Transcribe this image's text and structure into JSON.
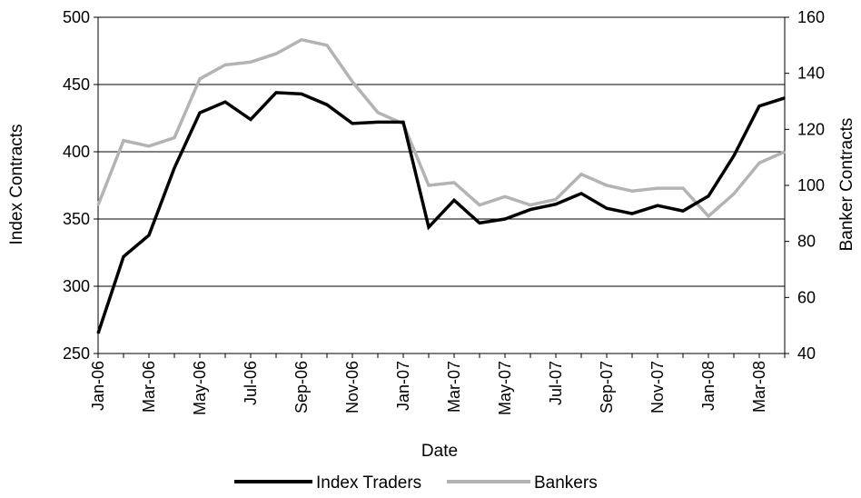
{
  "chart_data": {
    "type": "line",
    "xlabel": "Date",
    "ylabel_left": "Index Contracts",
    "ylabel_right": "Banker Contracts",
    "ylim_left": [
      250,
      500
    ],
    "ylim_right": [
      40,
      160
    ],
    "yticks_left": [
      "250",
      "300",
      "350",
      "400",
      "450",
      "500"
    ],
    "yticks_right": [
      "40",
      "60",
      "80",
      "100",
      "120",
      "140",
      "160"
    ],
    "x": [
      "Jan-06",
      "Feb-06",
      "Mar-06",
      "Apr-06",
      "May-06",
      "Jun-06",
      "Jul-06",
      "Aug-06",
      "Sep-06",
      "Oct-06",
      "Nov-06",
      "Dec-06",
      "Jan-07",
      "Feb-07",
      "Mar-07",
      "Apr-07",
      "May-07",
      "Jun-07",
      "Jul-07",
      "Aug-07",
      "Sep-07",
      "Oct-07",
      "Nov-07",
      "Dec-07",
      "Jan-08",
      "Feb-08",
      "Mar-08",
      "Apr-08"
    ],
    "xtick_labels": [
      "Jan-06",
      "Mar-06",
      "May-06",
      "Jul-06",
      "Sep-06",
      "Nov-06",
      "Jan-07",
      "Mar-07",
      "May-07",
      "Jul-07",
      "Sep-07",
      "Nov-07",
      "Jan-08",
      "Mar-08"
    ],
    "grid": true,
    "legend_position": "bottom",
    "series": [
      {
        "name": "Index Traders",
        "axis": "left",
        "color": "#000000",
        "values": [
          265,
          322,
          338,
          388,
          429,
          437,
          424,
          444,
          443,
          435,
          421,
          422,
          422,
          344,
          364,
          347,
          350,
          357,
          361,
          369,
          358,
          354,
          360,
          356,
          367,
          397,
          434,
          440
        ]
      },
      {
        "name": "Bankers",
        "axis": "right",
        "color": "#b3b3b3",
        "values": [
          93,
          116,
          114,
          117,
          138,
          143,
          144,
          147,
          152,
          150,
          137,
          126,
          122,
          100,
          101,
          93,
          96,
          93,
          95,
          104,
          100,
          98,
          99,
          99,
          89,
          97,
          108,
          112
        ]
      }
    ]
  }
}
